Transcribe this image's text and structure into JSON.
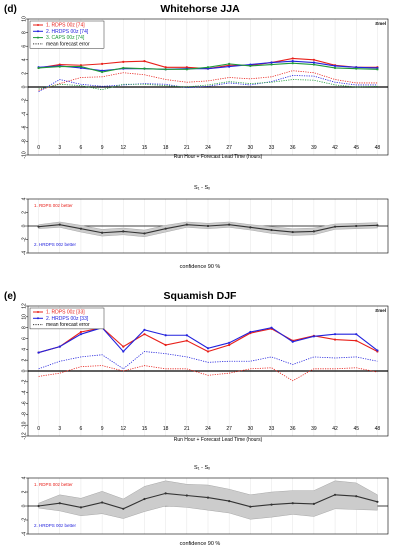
{
  "figure": {
    "panels": [
      {
        "letter": "(d)",
        "title": "Whitehorse JJA",
        "stat_label": "Ƨmel",
        "x_axis_label": "Run Hour + Forecast Lead Time (hours)",
        "difference_label": "S₁ - Sₓ",
        "confidence_label": "confidence  90 %",
        "better_top": "1. RDPS 00z  better",
        "better_bottom": "2. HRDPS 00z  better"
      },
      {
        "letter": "(e)",
        "title": "Squamish DJF",
        "stat_label": "Ƨmel",
        "x_axis_label": "Run Hour + Forecast Lead Time (hours)",
        "difference_label": "S₁ - Sₓ",
        "confidence_label": "confidence  90 %",
        "better_top": "1. RDPS 00z  better",
        "better_bottom": "2. HRDPS 00z  better"
      }
    ]
  },
  "colors": {
    "rdps": "#e8201a",
    "hrdps": "#2222dd",
    "caps": "#1f9a3a",
    "mean": "#333333",
    "band": "#cccccc",
    "axis": "#000000",
    "grid": "#e4e4e4"
  },
  "chart_data": [
    {
      "type": "line",
      "title": "Whitehorse JJA",
      "xlabel": "Run Hour + Forecast Lead Time (hours)",
      "ylabel": "",
      "x": [
        0,
        3,
        6,
        9,
        12,
        15,
        18,
        21,
        24,
        27,
        30,
        33,
        36,
        39,
        42,
        45,
        48
      ],
      "ylim": [
        -10,
        10
      ],
      "yticks": [
        -10,
        -8,
        -6,
        -4,
        -2,
        0,
        2,
        4,
        6,
        8,
        10
      ],
      "legend": "top-left",
      "series": [
        {
          "name": "1. RDPS 00z [74]",
          "color_key": "rdps",
          "style": "solid",
          "values": [
            2.8,
            3.3,
            3.2,
            3.4,
            3.7,
            3.8,
            2.9,
            2.9,
            2.7,
            3.2,
            3.2,
            3.6,
            4.2,
            4.0,
            3.2,
            2.9,
            2.9
          ]
        },
        {
          "name": "2. HRDPS 00z [74]",
          "color_key": "hrdps",
          "style": "solid",
          "values": [
            2.9,
            3.1,
            2.8,
            2.4,
            2.7,
            2.7,
            2.6,
            2.7,
            2.7,
            3.0,
            3.3,
            3.6,
            3.8,
            3.6,
            3.1,
            2.9,
            2.8
          ]
        },
        {
          "name": "3. CAPS 00z [74]",
          "color_key": "caps",
          "style": "solid",
          "values": [
            2.8,
            3.0,
            3.0,
            2.2,
            2.8,
            2.7,
            2.6,
            2.6,
            2.9,
            3.4,
            3.1,
            3.3,
            3.5,
            3.3,
            2.8,
            2.7,
            2.6
          ]
        },
        {
          "name": "",
          "color_key": "rdps",
          "style": "dotted",
          "values": [
            -0.5,
            0.5,
            1.4,
            1.5,
            2.1,
            1.8,
            1.1,
            0.7,
            0.9,
            1.4,
            1.2,
            1.5,
            2.4,
            2.1,
            1.1,
            0.6,
            0.6
          ]
        },
        {
          "name": "",
          "color_key": "hrdps",
          "style": "dotted",
          "values": [
            -0.7,
            1.1,
            0.4,
            0.1,
            0.3,
            0.5,
            0.4,
            -0.1,
            0.1,
            0.6,
            0.3,
            0.8,
            1.7,
            1.6,
            0.7,
            0.3,
            0.3
          ]
        },
        {
          "name": "",
          "color_key": "caps",
          "style": "dotted",
          "values": [
            -0.3,
            0.4,
            0.2,
            -0.4,
            0.4,
            0.4,
            0.2,
            0.0,
            0.3,
            0.8,
            0.5,
            0.7,
            1.1,
            1.0,
            0.3,
            0.0,
            0.1
          ]
        }
      ],
      "legend_entries": [
        "1. RDPS 00z [74]",
        "2. HRDPS 00z [74]",
        "3. CAPS 00z [74]",
        "mean forecast error"
      ]
    },
    {
      "type": "line",
      "title": "",
      "xlabel": "confidence  90 %",
      "ylabel": "S₁ - Sₓ",
      "x": [
        0,
        3,
        6,
        9,
        12,
        15,
        18,
        21,
        24,
        27,
        30,
        33,
        36,
        39,
        42,
        45,
        48
      ],
      "ylim": [
        -4,
        4
      ],
      "yticks": [
        -4,
        -2,
        0,
        2,
        4
      ],
      "series": [
        {
          "name": "",
          "color_key": "mean",
          "style": "solid",
          "values": [
            -0.1,
            0.2,
            -0.4,
            -1.0,
            -0.8,
            -1.1,
            -0.4,
            0.2,
            0.0,
            0.2,
            -0.2,
            -0.6,
            -0.9,
            -0.8,
            -0.1,
            0.0,
            0.1
          ]
        }
      ],
      "band": {
        "lower": [
          -0.4,
          -0.2,
          -0.9,
          -1.5,
          -1.3,
          -1.6,
          -0.9,
          -0.2,
          -0.4,
          -0.2,
          -0.6,
          -1.1,
          -1.4,
          -1.3,
          -0.5,
          -0.4,
          -0.3
        ],
        "upper": [
          0.2,
          0.6,
          0.1,
          -0.5,
          -0.3,
          -0.6,
          0.1,
          0.6,
          0.4,
          0.6,
          0.2,
          -0.1,
          -0.4,
          -0.3,
          0.3,
          0.4,
          0.5
        ]
      }
    },
    {
      "type": "line",
      "title": "Squamish DJF",
      "xlabel": "Run Hour + Forecast Lead Time (hours)",
      "ylabel": "",
      "x": [
        0,
        3,
        6,
        9,
        12,
        15,
        18,
        21,
        24,
        27,
        30,
        33,
        36,
        39,
        42,
        45,
        48
      ],
      "ylim": [
        -12,
        12
      ],
      "yticks": [
        -12,
        -10,
        -8,
        -6,
        -4,
        -2,
        0,
        2,
        4,
        6,
        8,
        10,
        12
      ],
      "legend": "top-left",
      "series": [
        {
          "name": "1. RDPS 00z [33]",
          "color_key": "rdps",
          "style": "solid",
          "values": [
            3.4,
            4.5,
            7.2,
            8.0,
            4.5,
            6.8,
            4.8,
            5.6,
            3.6,
            4.8,
            7.0,
            7.8,
            5.6,
            6.5,
            5.8,
            5.6,
            3.6
          ]
        },
        {
          "name": "2. HRDPS 00z [33]",
          "color_key": "hrdps",
          "style": "solid",
          "values": [
            3.4,
            4.5,
            6.8,
            8.0,
            3.6,
            7.6,
            6.6,
            6.6,
            4.2,
            5.2,
            7.2,
            8.0,
            5.4,
            6.4,
            6.8,
            6.8,
            3.8
          ]
        },
        {
          "name": "",
          "color_key": "rdps",
          "style": "dotted",
          "values": [
            -1.0,
            -0.4,
            0.8,
            1.0,
            0.0,
            1.0,
            0.4,
            0.4,
            -0.8,
            -0.4,
            0.4,
            0.6,
            -1.8,
            0.4,
            0.4,
            0.6,
            -0.2
          ]
        },
        {
          "name": "",
          "color_key": "hrdps",
          "style": "dotted",
          "values": [
            0.4,
            1.8,
            2.6,
            3.0,
            0.4,
            3.6,
            3.2,
            2.6,
            1.6,
            1.8,
            1.8,
            2.6,
            1.2,
            2.6,
            2.4,
            2.6,
            1.8
          ]
        }
      ],
      "legend_entries": [
        "1. RDPS 00z [33]",
        "2. HRDPS 00z [33]",
        "mean forecast error"
      ]
    },
    {
      "type": "line",
      "title": "",
      "xlabel": "confidence  90 %",
      "ylabel": "S₁ - Sₓ",
      "x": [
        0,
        3,
        6,
        9,
        12,
        15,
        18,
        21,
        24,
        27,
        30,
        33,
        36,
        39,
        42,
        45,
        48
      ],
      "ylim": [
        -4,
        4
      ],
      "yticks": [
        -4,
        -2,
        0,
        2,
        4
      ],
      "series": [
        {
          "name": "",
          "color_key": "mean",
          "style": "solid",
          "values": [
            0.0,
            0.4,
            -0.2,
            0.5,
            -0.4,
            1.0,
            1.8,
            1.5,
            1.2,
            0.7,
            -0.1,
            0.2,
            0.4,
            0.3,
            1.6,
            1.4,
            0.6
          ]
        }
      ],
      "band": {
        "lower": [
          -0.3,
          -0.7,
          -1.4,
          -1.1,
          -1.8,
          -0.8,
          0.0,
          -0.2,
          -0.6,
          -1.0,
          -1.9,
          -1.6,
          -1.2,
          -1.5,
          -0.4,
          -0.5,
          -0.6
        ],
        "upper": [
          0.4,
          1.6,
          1.1,
          2.1,
          1.0,
          2.8,
          3.6,
          3.1,
          3.0,
          2.4,
          1.6,
          2.0,
          2.2,
          2.2,
          3.6,
          3.3,
          1.6
        ]
      }
    }
  ]
}
